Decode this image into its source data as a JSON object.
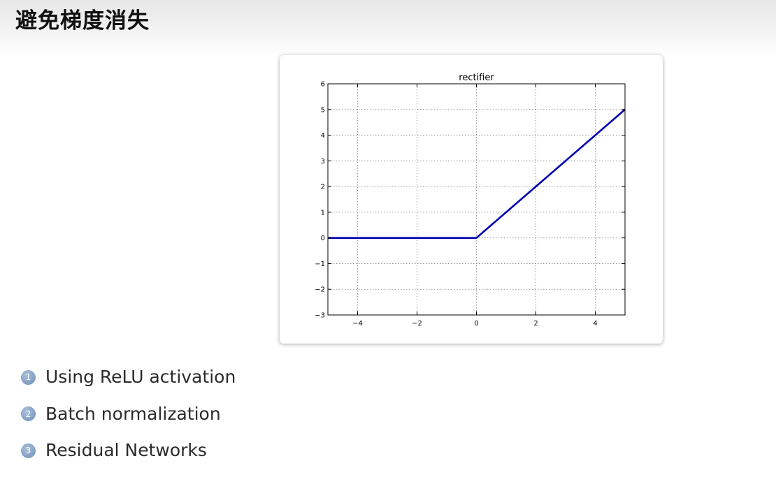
{
  "slide": {
    "title": "避免梯度消失"
  },
  "bullets": [
    {
      "number": "1",
      "text": "Using ReLU activation"
    },
    {
      "number": "2",
      "text": "Batch normalization"
    },
    {
      "number": "3",
      "text": "Residual Networks"
    }
  ],
  "colors": {
    "bullet_circle": "#7f9dc2",
    "line": "#0000b4",
    "grid": "#808080"
  },
  "chart_data": {
    "type": "line",
    "title": "rectifier",
    "xlabel": "",
    "ylabel": "",
    "xlim": [
      -5,
      5
    ],
    "ylim": [
      -3,
      6
    ],
    "x_ticks": [
      -4,
      -2,
      0,
      2,
      4
    ],
    "x_tick_labels": [
      "−4",
      "−2",
      "0",
      "2",
      "4"
    ],
    "y_ticks": [
      -3,
      -2,
      -1,
      0,
      1,
      2,
      3,
      4,
      5,
      6
    ],
    "y_tick_labels": [
      "−3",
      "−2",
      "−1",
      "0",
      "1",
      "2",
      "3",
      "4",
      "5",
      "6"
    ],
    "grid": true,
    "series": [
      {
        "x": [
          -5,
          0,
          5
        ],
        "y": [
          0,
          0,
          5
        ]
      }
    ]
  }
}
